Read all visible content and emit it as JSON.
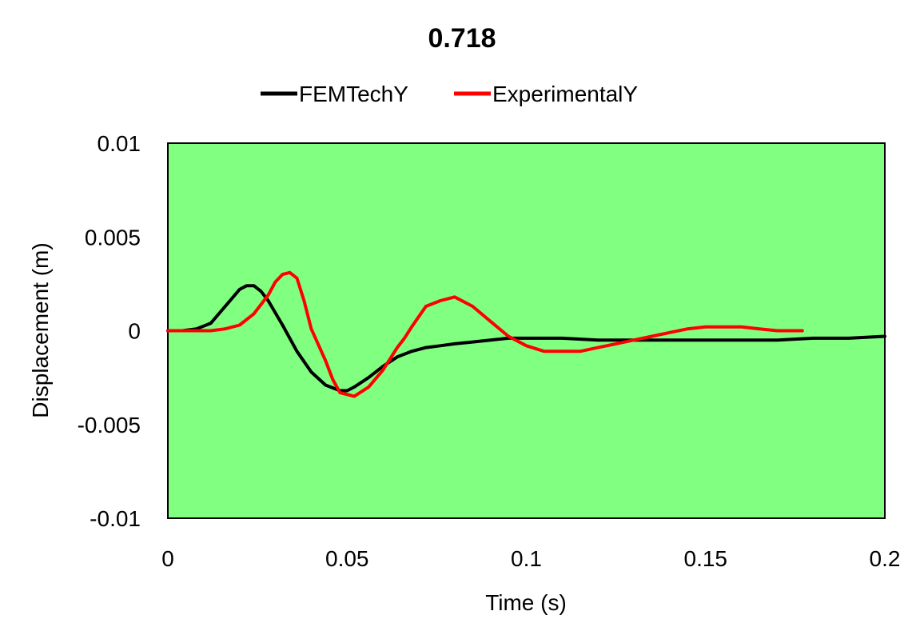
{
  "chart_data": {
    "type": "line",
    "title": "0.718",
    "xlabel": "Time (s)",
    "ylabel": "Displacement (m)",
    "xlim": [
      0,
      0.2
    ],
    "ylim": [
      -0.01,
      0.01
    ],
    "xticks": [
      0,
      0.05,
      0.1,
      0.15,
      0.2
    ],
    "xtick_labels": [
      "0",
      "0.05",
      "0.1",
      "0.15",
      "0.2"
    ],
    "yticks": [
      0.01,
      0.005,
      0,
      -0.005,
      -0.01
    ],
    "ytick_labels": [
      "0.01",
      "0.005",
      "0",
      "-0.005",
      "-0.01"
    ],
    "grid": false,
    "legend_position": "top",
    "plot_background": "#80ff80",
    "series": [
      {
        "name": "FEMTechY",
        "color": "#000000",
        "x": [
          0,
          0.004,
          0.008,
          0.012,
          0.016,
          0.02,
          0.022,
          0.024,
          0.026,
          0.028,
          0.032,
          0.036,
          0.04,
          0.044,
          0.048,
          0.05,
          0.052,
          0.056,
          0.06,
          0.064,
          0.068,
          0.072,
          0.076,
          0.08,
          0.085,
          0.09,
          0.095,
          0.1,
          0.11,
          0.12,
          0.13,
          0.14,
          0.15,
          0.16,
          0.17,
          0.18,
          0.19,
          0.2
        ],
        "y": [
          0,
          0.0,
          0.0001,
          0.0004,
          0.0013,
          0.0022,
          0.0024,
          0.0024,
          0.0021,
          0.0016,
          0.0003,
          -0.0011,
          -0.0022,
          -0.0029,
          -0.0032,
          -0.0032,
          -0.003,
          -0.0025,
          -0.0019,
          -0.0014,
          -0.0011,
          -0.0009,
          -0.0008,
          -0.0007,
          -0.0006,
          -0.0005,
          -0.0004,
          -0.0004,
          -0.0004,
          -0.0005,
          -0.0005,
          -0.0005,
          -0.0005,
          -0.0005,
          -0.0005,
          -0.0004,
          -0.0004,
          -0.0003
        ]
      },
      {
        "name": "ExperimentalY",
        "color": "#ff0000",
        "x": [
          0,
          0.004,
          0.008,
          0.012,
          0.016,
          0.02,
          0.024,
          0.028,
          0.03,
          0.032,
          0.034,
          0.036,
          0.038,
          0.04,
          0.044,
          0.046,
          0.048,
          0.052,
          0.056,
          0.06,
          0.064,
          0.066,
          0.068,
          0.072,
          0.076,
          0.08,
          0.085,
          0.09,
          0.095,
          0.1,
          0.105,
          0.11,
          0.115,
          0.12,
          0.125,
          0.13,
          0.135,
          0.14,
          0.145,
          0.15,
          0.155,
          0.16,
          0.165,
          0.17,
          0.175,
          0.177
        ],
        "y": [
          0,
          0,
          0,
          0,
          0.0001,
          0.0003,
          0.0009,
          0.0019,
          0.0026,
          0.003,
          0.0031,
          0.0028,
          0.0016,
          0.0001,
          -0.0016,
          -0.0026,
          -0.0033,
          -0.0035,
          -0.003,
          -0.0021,
          -0.0009,
          -0.0004,
          0.0002,
          0.0013,
          0.0016,
          0.0018,
          0.0013,
          0.0005,
          -0.0003,
          -0.0008,
          -0.0011,
          -0.0011,
          -0.0011,
          -0.0009,
          -0.0007,
          -0.0005,
          -0.0003,
          -0.0001,
          0.0001,
          0.0002,
          0.0002,
          0.0002,
          0.0001,
          0.0,
          0.0,
          0.0
        ]
      }
    ]
  }
}
